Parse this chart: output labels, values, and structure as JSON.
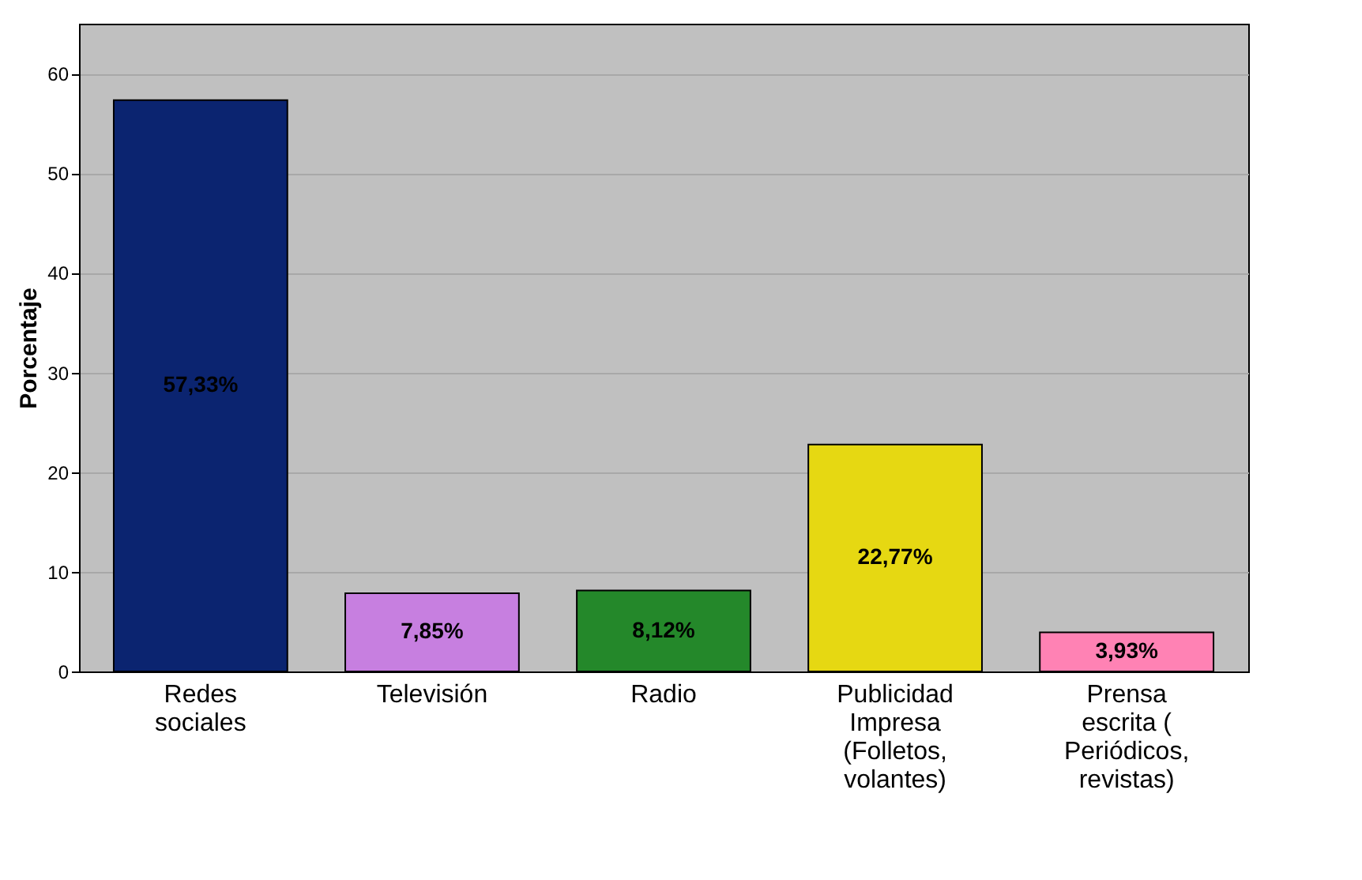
{
  "chart_data": {
    "type": "bar",
    "ylabel": "Porcentaje",
    "categories": [
      "Redes sociales",
      "Televisión",
      "Radio",
      "Publicidad Impresa (Folletos, volantes)",
      "Prensa escrita ( Periódicos, revistas)"
    ],
    "values": [
      57.33,
      7.85,
      8.12,
      22.77,
      3.93
    ],
    "colors": [
      "#0b2470",
      "#c77fe0",
      "#24882a",
      "#e6d812",
      "#ff82b4"
    ],
    "value_labels": [
      "57,33%",
      "7,85%",
      "8,12%",
      "22,77%",
      "3,93%"
    ],
    "ylim": [
      0,
      65
    ],
    "yticks": [
      0,
      10,
      20,
      30,
      40,
      50,
      60
    ],
    "grid": "y"
  }
}
